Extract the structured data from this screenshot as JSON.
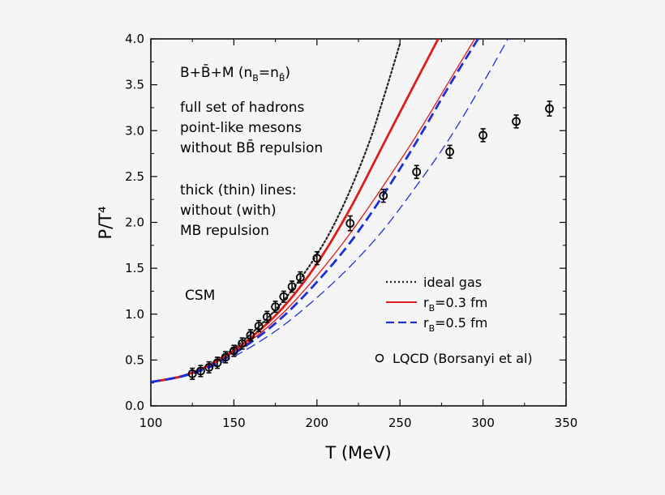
{
  "chart_data": {
    "type": "line",
    "xlabel": "T (MeV)",
    "ylabel": "P/T⁴",
    "xlim": [
      100,
      350
    ],
    "ylim": [
      0,
      4.0
    ],
    "xticks": [
      100,
      150,
      200,
      250,
      300,
      350
    ],
    "yticks": [
      0.0,
      0.5,
      1.0,
      1.5,
      2.0,
      2.5,
      3.0,
      3.5,
      4.0
    ],
    "ytick_labels": [
      "0.0",
      "0.5",
      "1.0",
      "1.5",
      "2.0",
      "2.5",
      "3.0",
      "3.5",
      "4.0"
    ],
    "grid": false,
    "legend_position": "bottom-right",
    "annotations": {
      "formula": {
        "main": "B+B̄+M (n",
        "sub1": "B",
        "eq": "=n",
        "sub2": "B̄",
        "close": ")"
      },
      "lines1": [
        "full set of hadrons",
        "point-like mesons",
        "without BB̄ repulsion"
      ],
      "lines2": [
        "thick (thin) lines:",
        "without (with)",
        "MB repulsion"
      ],
      "model": "CSM"
    },
    "legend": [
      {
        "label": "ideal gas",
        "style": "dotted",
        "color": "#222222"
      },
      {
        "label_main": "r",
        "label_sub": "B",
        "label_rest": "=0.3 fm",
        "style": "solid",
        "color": "#e01b1b"
      },
      {
        "label_main": "r",
        "label_sub": "B",
        "label_rest": "=0.5 fm",
        "style": "dashed",
        "color": "#1f2fd6"
      },
      {
        "label": "LQCD (Borsanyi et al)",
        "style": "marker",
        "color": "#000000"
      }
    ],
    "series": [
      {
        "style": "dotted",
        "color": "#222222",
        "width": 2.2,
        "x": [
          100,
          120,
          140,
          160,
          180,
          200,
          215,
          230,
          240,
          250
        ],
        "y": [
          0.26,
          0.33,
          0.5,
          0.78,
          1.15,
          1.65,
          2.15,
          2.8,
          3.35,
          3.95
        ]
      },
      {
        "style": "solid",
        "color": "#e01b1b",
        "width": 2.8,
        "x": [
          100,
          120,
          140,
          160,
          180,
          200,
          220,
          240,
          260,
          273
        ],
        "y": [
          0.26,
          0.33,
          0.49,
          0.74,
          1.08,
          1.55,
          2.15,
          2.85,
          3.55,
          4.0
        ]
      },
      {
        "style": "solid",
        "color": "#e01b1b",
        "width": 1.3,
        "x": [
          100,
          120,
          140,
          160,
          180,
          200,
          220,
          240,
          260,
          280,
          295
        ],
        "y": [
          0.26,
          0.33,
          0.48,
          0.71,
          1.02,
          1.42,
          1.88,
          2.4,
          2.95,
          3.55,
          4.0
        ]
      },
      {
        "style": "dashed",
        "color": "#1f2fd6",
        "width": 2.8,
        "x": [
          100,
          120,
          140,
          160,
          180,
          200,
          220,
          240,
          260,
          280,
          297
        ],
        "y": [
          0.26,
          0.33,
          0.47,
          0.69,
          0.98,
          1.35,
          1.78,
          2.3,
          2.88,
          3.5,
          4.0
        ]
      },
      {
        "style": "dashed",
        "color": "#1f2fd6",
        "width": 1.3,
        "x": [
          100,
          120,
          140,
          160,
          180,
          200,
          220,
          240,
          260,
          280,
          300,
          315
        ],
        "y": [
          0.26,
          0.32,
          0.45,
          0.64,
          0.88,
          1.18,
          1.52,
          1.92,
          2.4,
          2.92,
          3.52,
          4.0
        ]
      }
    ],
    "lqcd": {
      "x": [
        125,
        130,
        135,
        140,
        145,
        150,
        155,
        160,
        165,
        170,
        175,
        180,
        185,
        190,
        200,
        220,
        240,
        260,
        280,
        300,
        320,
        340
      ],
      "y": [
        0.35,
        0.38,
        0.42,
        0.47,
        0.53,
        0.6,
        0.68,
        0.77,
        0.87,
        0.97,
        1.08,
        1.19,
        1.3,
        1.4,
        1.61,
        1.99,
        2.29,
        2.55,
        2.77,
        2.95,
        3.1,
        3.24
      ],
      "err": [
        0.06,
        0.06,
        0.06,
        0.06,
        0.06,
        0.06,
        0.06,
        0.06,
        0.06,
        0.06,
        0.06,
        0.06,
        0.06,
        0.06,
        0.07,
        0.08,
        0.07,
        0.07,
        0.07,
        0.07,
        0.07,
        0.08
      ]
    }
  }
}
